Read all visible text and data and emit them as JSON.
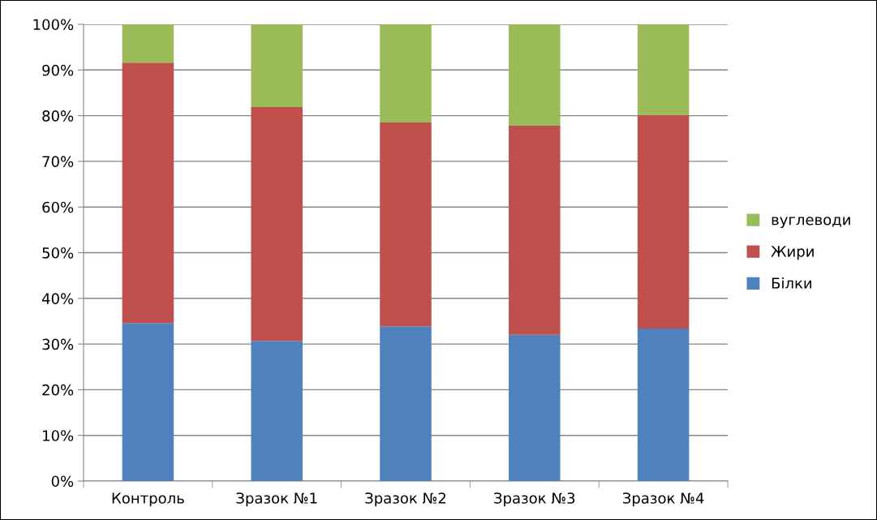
{
  "chart_data": {
    "type": "bar",
    "stacked": true,
    "categories": [
      "Контроль",
      "Зразок №1",
      "Зразок №2",
      "Зразок №3",
      "Зразок №4"
    ],
    "series": [
      {
        "name": "Білки",
        "color": "#4f81bd",
        "values": [
          34.6,
          30.7,
          33.9,
          32.0,
          33.4
        ]
      },
      {
        "name": "Жири",
        "color": "#c0504d",
        "values": [
          57.0,
          51.2,
          44.6,
          45.8,
          46.7
        ]
      },
      {
        "name": "вуглеводи",
        "color": "#9bbb59",
        "values": [
          8.4,
          18.1,
          21.5,
          22.2,
          19.9
        ]
      }
    ],
    "ylim": [
      0,
      100
    ],
    "yticks": [
      {
        "value": 0,
        "label": "0%"
      },
      {
        "value": 10,
        "label": "10%"
      },
      {
        "value": 20,
        "label": "20%"
      },
      {
        "value": 30,
        "label": "30%"
      },
      {
        "value": 40,
        "label": "40%"
      },
      {
        "value": 50,
        "label": "50%"
      },
      {
        "value": 60,
        "label": "60%"
      },
      {
        "value": 70,
        "label": "70%"
      },
      {
        "value": 80,
        "label": "80%"
      },
      {
        "value": 90,
        "label": "90%"
      },
      {
        "value": 100,
        "label": "100%"
      }
    ],
    "grid": "y",
    "legend": "right"
  }
}
